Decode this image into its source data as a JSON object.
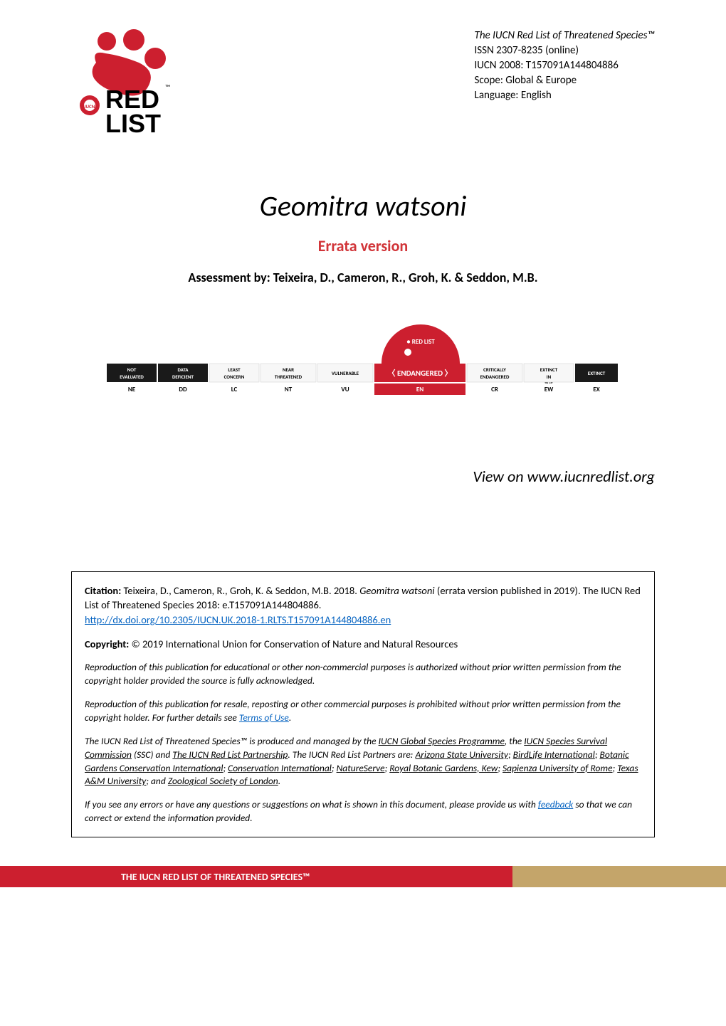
{
  "header": {
    "line1": "The IUCN Red List of Threatened Species™",
    "line2": "ISSN 2307-8235 (online)",
    "line3": "IUCN 2008: T157091A144804886",
    "line4": "Scope: Global & Europe",
    "line5": "Language: English"
  },
  "logo": {
    "bg_color": "#ffffff",
    "red": "#cc1f2f",
    "black": "#000000"
  },
  "title": {
    "species": "Geomitra watsoni",
    "errata": "Errata version",
    "errata_color": "#d13438",
    "assessment": "Assessment by: Teixeira, D., Cameron, R., Groh, K. & Seddon, M.B."
  },
  "status_bar": {
    "highlighted_index": 5,
    "marker_color": "#cc1f2f",
    "cells": [
      {
        "top": "NOT EVALUATED",
        "code": "NE",
        "bg": "#1a1a1a",
        "fg": "#ffffff"
      },
      {
        "top": "DATA DEFICIENT",
        "code": "DD",
        "bg": "#1a1a1a",
        "fg": "#ffffff"
      },
      {
        "top": "LEAST CONCERN",
        "code": "LC",
        "bg": "#f7f7f7",
        "fg": "#000000"
      },
      {
        "top": "NEAR THREATENED",
        "code": "NT",
        "bg": "#f7f7f7",
        "fg": "#000000"
      },
      {
        "top": "VULNERABLE",
        "code": "VU",
        "bg": "#f7f7f7",
        "fg": "#000000"
      },
      {
        "top": "ENDANGERED",
        "code": "EN",
        "bg": "#cc1f2f",
        "fg": "#ffffff"
      },
      {
        "top": "CRITICALLY ENDANGERED",
        "code": "CR",
        "bg": "#f7f7f7",
        "fg": "#000000"
      },
      {
        "top": "EXTINCT IN THE WILD",
        "code": "EW",
        "bg": "#f7f7f7",
        "fg": "#000000"
      },
      {
        "top": "EXTINCT",
        "code": "EX",
        "bg": "#1a1a1a",
        "fg": "#ffffff"
      }
    ]
  },
  "view_link": "View on www.iucnredlist.org",
  "citation": {
    "label": "Citation: ",
    "text_a": "Teixeira, D., Cameron, R., Groh, K. & Seddon, M.B. 2018. ",
    "species_italic": "Geomitra watsoni",
    "text_b": " (errata version published in 2019). The IUCN Red List of Threatened Species 2018: e.T157091A144804886.",
    "doi": "http://dx.doi.org/10.2305/IUCN.UK.2018-1.RLTS.T157091A144804886.en"
  },
  "copyright": {
    "label": "Copyright: ",
    "text": "© 2019 International Union for Conservation of Nature and Natural Resources"
  },
  "repro1": "Reproduction of this publication for educational or other non-commercial purposes is authorized without prior written permission from the copyright holder provided the source is fully acknowledged.",
  "repro2_a": "Reproduction of this publication for resale, reposting or other commercial purposes is prohibited without prior written permission from the copyright holder. For further details see ",
  "repro2_link": "Terms of Use",
  "repro2_b": ".",
  "partners": {
    "a": "The IUCN Red List of Threatened Species™ is produced and managed by the ",
    "l1": "IUCN Global Species Programme",
    "b": ", the ",
    "l2": "IUCN Species Survival Commission",
    "c": " (SSC) and ",
    "l3": "The IUCN Red List Partnership",
    "d": ". The IUCN Red List Partners are: ",
    "l4": "Arizona State University",
    "sep": "; ",
    "l5": "BirdLife International",
    "l6": "Botanic Gardens Conservation International",
    "l7": "Conservation International",
    "l8": "NatureServe",
    "l9": "Royal Botanic Gardens, Kew",
    "l10": "Sapienza University of Rome",
    "l11": "Texas A&M University",
    "e": "; and ",
    "l12": "Zoological Society of London",
    "f": "."
  },
  "feedback": {
    "a": "If you see any errors or have any questions or suggestions on what is shown in this document, please provide us with ",
    "link": "feedback",
    "b": " so that we can correct or extend the information provided."
  },
  "footer": {
    "text": "THE IUCN RED LIST OF THREATENED SPECIES™",
    "red": "#cc1f2f",
    "tan": "#c4a56a"
  }
}
